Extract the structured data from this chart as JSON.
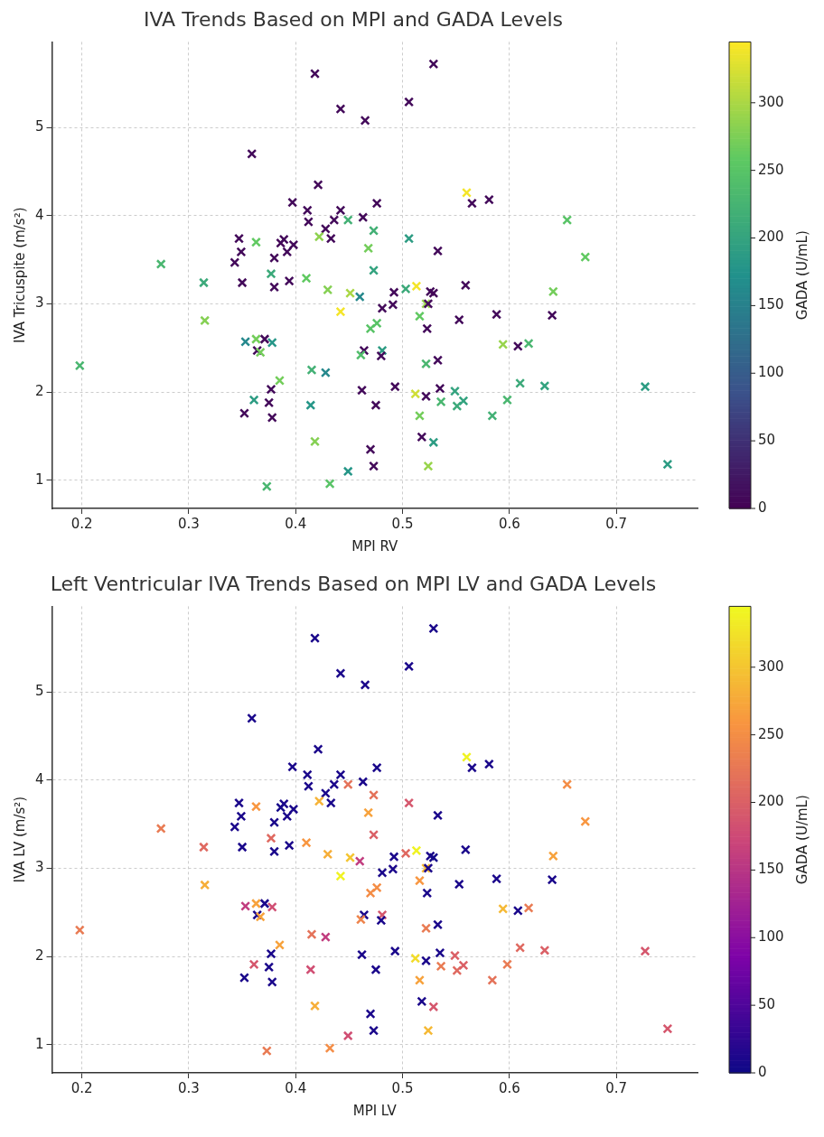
{
  "chart_data": [
    {
      "type": "scatter",
      "title": "IVA Trends Based on MPI and GADA Levels",
      "xlabel": "MPI RV",
      "ylabel": "IVA Tricuspite (m/s²)",
      "clabel": "GADA (U/mL)",
      "clim": [
        0,
        345
      ],
      "cticks": [
        0,
        50,
        100,
        150,
        200,
        250,
        300
      ],
      "xlim": [
        0.172,
        0.776
      ],
      "ylim": [
        0.68,
        5.97
      ],
      "xticks": [
        0.2,
        0.3,
        0.4,
        0.5,
        0.6,
        0.7
      ],
      "yticks": [
        1,
        2,
        3,
        4,
        5
      ],
      "grid": true,
      "marker": "cross",
      "series": [
        {
          "x": [
            0.418,
            0.442,
            0.465,
            0.359,
            0.421,
            0.397,
            0.411,
            0.442,
            0.476,
            0.412,
            0.436,
            0.449,
            0.463,
            0.428,
            0.433,
            0.422,
            0.473,
            0.468,
            0.473,
            0.347,
            0.363,
            0.349,
            0.343,
            0.38,
            0.386,
            0.389,
            0.398,
            0.392,
            0.377,
            0.274,
            0.529,
            0.506,
            0.56,
            0.565,
            0.581,
            0.654,
            0.671,
            0.506,
            0.533,
            0.314,
            0.35,
            0.38,
            0.394,
            0.41,
            0.43,
            0.451,
            0.46,
            0.442,
            0.481,
            0.476,
            0.47,
            0.315,
            0.353,
            0.363,
            0.371,
            0.378,
            0.364,
            0.367,
            0.464,
            0.461,
            0.481,
            0.48,
            0.415,
            0.428,
            0.385,
            0.377,
            0.462,
            0.361,
            0.375,
            0.414,
            0.475,
            0.352,
            0.378,
            0.418,
            0.47,
            0.473,
            0.449,
            0.373,
            0.432,
            0.198,
            0.492,
            0.491,
            0.503,
            0.513,
            0.526,
            0.529,
            0.559,
            0.522,
            0.524,
            0.516,
            0.523,
            0.553,
            0.588,
            0.641,
            0.64,
            0.594,
            0.608,
            0.618,
            0.522,
            0.533,
            0.493,
            0.512,
            0.522,
            0.535,
            0.536,
            0.549,
            0.551,
            0.557,
            0.584,
            0.598,
            0.61,
            0.633,
            0.727,
            0.516,
            0.518,
            0.529,
            0.524,
            0.748
          ],
          "values": [
            5.61,
            5.21,
            5.08,
            4.7,
            4.35,
            4.15,
            4.06,
            4.06,
            4.14,
            3.93,
            3.95,
            3.95,
            3.98,
            3.85,
            3.74,
            3.76,
            3.83,
            3.63,
            3.38,
            3.74,
            3.7,
            3.59,
            3.47,
            3.52,
            3.69,
            3.73,
            3.67,
            3.59,
            3.34,
            3.45,
            5.72,
            5.29,
            4.26,
            4.14,
            4.18,
            3.95,
            3.53,
            3.74,
            3.6,
            3.24,
            3.24,
            3.19,
            3.26,
            3.29,
            3.16,
            3.12,
            3.08,
            2.91,
            2.95,
            2.78,
            2.72,
            2.81,
            2.57,
            2.6,
            2.6,
            2.56,
            2.47,
            2.45,
            2.47,
            2.42,
            2.47,
            2.41,
            2.25,
            2.22,
            2.13,
            2.03,
            2.02,
            1.91,
            1.88,
            1.85,
            1.85,
            1.76,
            1.71,
            1.44,
            1.35,
            1.16,
            1.1,
            0.93,
            0.96,
            2.3,
            3.13,
            2.99,
            3.17,
            3.2,
            3.14,
            3.12,
            3.21,
            3.0,
            3.0,
            2.86,
            2.72,
            2.82,
            2.88,
            3.14,
            2.87,
            2.54,
            2.52,
            2.55,
            2.32,
            2.36,
            2.06,
            1.98,
            1.95,
            2.04,
            1.89,
            2.01,
            1.84,
            1.9,
            1.73,
            1.91,
            2.1,
            2.07,
            2.06,
            1.73,
            1.49,
            1.43,
            1.16,
            1.18
          ],
          "cvalues": [
            10,
            10,
            10,
            10,
            10,
            10,
            10,
            10,
            10,
            10,
            10,
            220,
            10,
            10,
            10,
            285,
            220,
            270,
            200,
            10,
            260,
            10,
            10,
            10,
            5,
            10,
            10,
            10,
            210,
            230,
            10,
            10,
            340,
            10,
            10,
            250,
            260,
            190,
            10,
            210,
            10,
            10,
            10,
            260,
            280,
            300,
            160,
            340,
            10,
            250,
            250,
            280,
            160,
            270,
            10,
            180,
            10,
            270,
            10,
            240,
            190,
            10,
            220,
            160,
            270,
            10,
            10,
            190,
            10,
            180,
            10,
            10,
            10,
            280,
            10,
            10,
            180,
            230,
            250,
            230,
            10,
            10,
            210,
            340,
            10,
            5,
            10,
            290,
            10,
            260,
            10,
            10,
            10,
            270,
            10,
            290,
            10,
            230,
            230,
            10,
            10,
            320,
            10,
            10,
            230,
            200,
            210,
            200,
            220,
            230,
            210,
            200,
            190,
            270,
            10,
            190,
            290,
            190
          ]
        }
      ]
    },
    {
      "type": "scatter",
      "title": "Left Ventricular IVA Trends Based on MPI LV and GADA Levels",
      "xlabel": "MPI LV",
      "ylabel": "IVA LV (m/s²)",
      "clabel": "GADA (U/mL)",
      "clim": [
        0,
        345
      ],
      "cticks": [
        0,
        50,
        100,
        150,
        200,
        250,
        300
      ],
      "xlim": [
        0.172,
        0.776
      ],
      "ylim": [
        0.68,
        5.97
      ],
      "xticks": [
        0.2,
        0.3,
        0.4,
        0.5,
        0.6,
        0.7
      ],
      "yticks": [
        1,
        2,
        3,
        4,
        5
      ],
      "grid": true,
      "marker": "cross",
      "series": [
        {
          "x": [
            0.418,
            0.442,
            0.465,
            0.359,
            0.421,
            0.397,
            0.411,
            0.442,
            0.476,
            0.412,
            0.436,
            0.449,
            0.463,
            0.428,
            0.433,
            0.422,
            0.473,
            0.468,
            0.473,
            0.347,
            0.363,
            0.349,
            0.343,
            0.38,
            0.386,
            0.389,
            0.398,
            0.392,
            0.377,
            0.274,
            0.529,
            0.506,
            0.56,
            0.565,
            0.581,
            0.654,
            0.671,
            0.506,
            0.533,
            0.314,
            0.35,
            0.38,
            0.394,
            0.41,
            0.43,
            0.451,
            0.46,
            0.442,
            0.481,
            0.476,
            0.47,
            0.315,
            0.353,
            0.363,
            0.371,
            0.378,
            0.364,
            0.367,
            0.464,
            0.461,
            0.481,
            0.48,
            0.415,
            0.428,
            0.385,
            0.377,
            0.462,
            0.361,
            0.375,
            0.414,
            0.475,
            0.352,
            0.378,
            0.418,
            0.47,
            0.473,
            0.449,
            0.373,
            0.432,
            0.198,
            0.492,
            0.491,
            0.503,
            0.513,
            0.526,
            0.529,
            0.559,
            0.522,
            0.524,
            0.516,
            0.523,
            0.553,
            0.588,
            0.641,
            0.64,
            0.594,
            0.608,
            0.618,
            0.522,
            0.533,
            0.493,
            0.512,
            0.522,
            0.535,
            0.536,
            0.549,
            0.551,
            0.557,
            0.584,
            0.598,
            0.61,
            0.633,
            0.727,
            0.516,
            0.518,
            0.529,
            0.524,
            0.748
          ],
          "values": [
            5.61,
            5.21,
            5.08,
            4.7,
            4.35,
            4.15,
            4.06,
            4.06,
            4.14,
            3.93,
            3.95,
            3.95,
            3.98,
            3.85,
            3.74,
            3.76,
            3.83,
            3.63,
            3.38,
            3.74,
            3.7,
            3.59,
            3.47,
            3.52,
            3.69,
            3.73,
            3.67,
            3.59,
            3.34,
            3.45,
            5.72,
            5.29,
            4.26,
            4.14,
            4.18,
            3.95,
            3.53,
            3.74,
            3.6,
            3.24,
            3.24,
            3.19,
            3.26,
            3.29,
            3.16,
            3.12,
            3.08,
            2.91,
            2.95,
            2.78,
            2.72,
            2.81,
            2.57,
            2.6,
            2.6,
            2.56,
            2.47,
            2.45,
            2.47,
            2.42,
            2.47,
            2.41,
            2.25,
            2.22,
            2.13,
            2.03,
            2.02,
            1.91,
            1.88,
            1.85,
            1.85,
            1.76,
            1.71,
            1.44,
            1.35,
            1.16,
            1.1,
            0.93,
            0.96,
            2.3,
            3.13,
            2.99,
            3.17,
            3.2,
            3.14,
            3.12,
            3.21,
            3.0,
            3.0,
            2.86,
            2.72,
            2.82,
            2.88,
            3.14,
            2.87,
            2.54,
            2.52,
            2.55,
            2.32,
            2.36,
            2.06,
            1.98,
            1.95,
            2.04,
            1.89,
            2.01,
            1.84,
            1.9,
            1.73,
            1.91,
            2.1,
            2.07,
            2.06,
            1.73,
            1.49,
            1.43,
            1.16,
            1.18
          ],
          "cvalues": [
            10,
            10,
            10,
            10,
            10,
            10,
            10,
            10,
            10,
            10,
            10,
            220,
            10,
            10,
            10,
            285,
            220,
            270,
            200,
            10,
            260,
            10,
            10,
            10,
            5,
            10,
            10,
            10,
            210,
            230,
            10,
            10,
            340,
            10,
            10,
            250,
            260,
            190,
            10,
            210,
            10,
            10,
            10,
            260,
            280,
            300,
            160,
            340,
            10,
            250,
            250,
            280,
            160,
            270,
            10,
            180,
            10,
            270,
            10,
            240,
            190,
            10,
            220,
            160,
            270,
            10,
            10,
            190,
            10,
            180,
            10,
            10,
            10,
            280,
            10,
            10,
            180,
            230,
            250,
            230,
            10,
            10,
            210,
            340,
            10,
            5,
            10,
            290,
            10,
            260,
            10,
            10,
            10,
            270,
            10,
            290,
            10,
            230,
            230,
            10,
            10,
            320,
            10,
            10,
            230,
            200,
            210,
            200,
            220,
            230,
            210,
            200,
            190,
            270,
            10,
            190,
            290,
            190
          ]
        }
      ]
    }
  ]
}
